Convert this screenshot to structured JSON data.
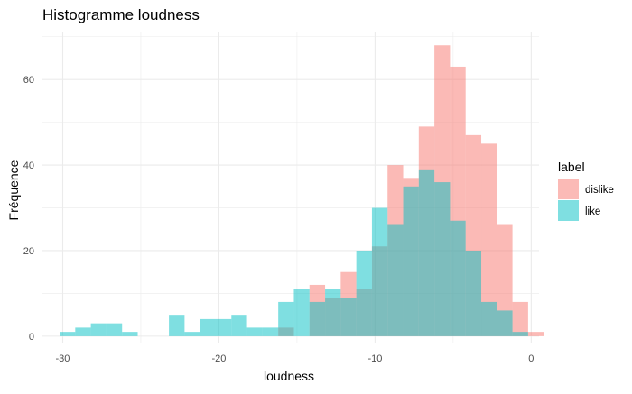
{
  "chart_data": {
    "type": "bar",
    "title": "Histogramme loudness",
    "xlabel": "loudness",
    "ylabel": "Fréquence",
    "xlim": [
      -31.3,
      0.5
    ],
    "ylim": [
      -1.5,
      71
    ],
    "xticks": [
      -30,
      -20,
      -10,
      0
    ],
    "yticks": [
      0,
      20,
      40,
      60
    ],
    "xtick_labels": [
      "-30",
      "-20",
      "-10",
      "0"
    ],
    "ytick_labels": [
      "0",
      "20",
      "40",
      "60"
    ],
    "grid": true,
    "bin_start": -30.2,
    "bin_width": 1,
    "legend": {
      "title": "label",
      "position": "right",
      "entries": [
        "dislike",
        "like"
      ]
    },
    "series": [
      {
        "name": "dislike",
        "color": "#F8766D",
        "values": [
          0,
          0,
          0,
          0,
          0,
          0,
          0,
          0,
          0,
          0,
          0,
          0,
          0,
          0,
          2,
          0,
          12,
          9,
          15,
          11,
          21,
          40,
          37,
          49,
          68,
          63,
          47,
          45,
          26,
          8,
          1
        ]
      },
      {
        "name": "like",
        "color": "#00BFC4",
        "values": [
          1,
          2,
          3,
          3,
          1,
          0,
          0,
          5,
          1,
          4,
          4,
          5,
          2,
          2,
          8,
          11,
          8,
          11,
          9,
          20,
          30,
          26,
          35,
          39,
          36,
          27,
          20,
          8,
          6,
          1,
          0
        ]
      }
    ]
  }
}
